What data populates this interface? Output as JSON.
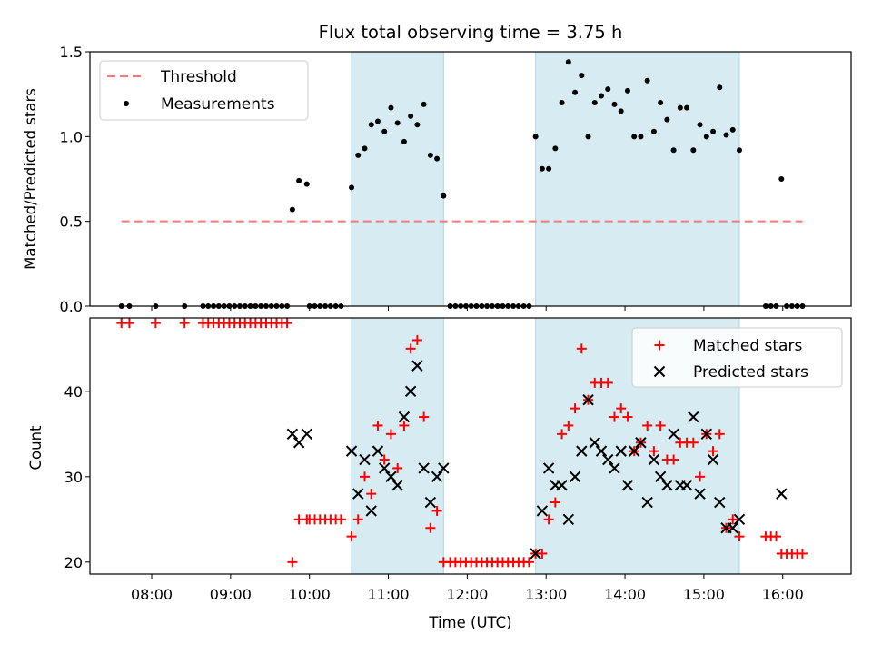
{
  "chart_data": [
    {
      "type": "scatter",
      "title": "Flux total observing time = 3.75 h",
      "xlabel": "",
      "ylabel": "Matched/Predicted stars",
      "ylim": [
        0,
        1.5
      ],
      "yticks": [
        "0.0",
        "0.5",
        "1.0",
        "1.5"
      ],
      "legend_position": "top-left",
      "threshold": {
        "name": "Threshold",
        "value": 0.5,
        "x_start": "07:37",
        "x_end": "16:15",
        "color": "#ff7777"
      },
      "shaded_spans": [
        [
          "10:32",
          "11:42"
        ],
        [
          "12:52",
          "15:27"
        ]
      ],
      "shade_color": "#add8e6",
      "series": [
        {
          "name": "Measurements",
          "color": "#000000",
          "points": [
            [
              "07:37",
              0
            ],
            [
              "07:43",
              0
            ],
            [
              "08:03",
              0
            ],
            [
              "08:25",
              0
            ],
            [
              "08:39",
              0
            ],
            [
              "08:43",
              0
            ],
            [
              "08:47",
              0
            ],
            [
              "08:51",
              0
            ],
            [
              "08:55",
              0
            ],
            [
              "08:59",
              0
            ],
            [
              "09:03",
              0
            ],
            [
              "09:07",
              0
            ],
            [
              "09:11",
              0
            ],
            [
              "09:15",
              0
            ],
            [
              "09:19",
              0
            ],
            [
              "09:23",
              0
            ],
            [
              "09:27",
              0
            ],
            [
              "09:31",
              0
            ],
            [
              "09:35",
              0
            ],
            [
              "09:39",
              0
            ],
            [
              "09:43",
              0
            ],
            [
              "09:47",
              0.57
            ],
            [
              "09:52",
              0.74
            ],
            [
              "09:58",
              0.72
            ],
            [
              "10:00",
              0
            ],
            [
              "10:04",
              0
            ],
            [
              "10:08",
              0
            ],
            [
              "10:12",
              0
            ],
            [
              "10:16",
              0
            ],
            [
              "10:20",
              0
            ],
            [
              "10:24",
              0
            ],
            [
              "10:32",
              0.7
            ],
            [
              "10:37",
              0.89
            ],
            [
              "10:42",
              0.93
            ],
            [
              "10:47",
              1.07
            ],
            [
              "10:52",
              1.09
            ],
            [
              "10:57",
              1.03
            ],
            [
              "11:02",
              1.17
            ],
            [
              "11:07",
              1.08
            ],
            [
              "11:12",
              0.97
            ],
            [
              "11:17",
              1.12
            ],
            [
              "11:22",
              1.07
            ],
            [
              "11:27",
              1.19
            ],
            [
              "11:32",
              0.89
            ],
            [
              "11:37",
              0.87
            ],
            [
              "11:42",
              0.65
            ],
            [
              "11:47",
              0
            ],
            [
              "11:51",
              0
            ],
            [
              "11:55",
              0
            ],
            [
              "11:59",
              0
            ],
            [
              "12:03",
              0
            ],
            [
              "12:07",
              0
            ],
            [
              "12:11",
              0
            ],
            [
              "12:15",
              0
            ],
            [
              "12:19",
              0
            ],
            [
              "12:23",
              0
            ],
            [
              "12:27",
              0
            ],
            [
              "12:31",
              0
            ],
            [
              "12:35",
              0
            ],
            [
              "12:39",
              0
            ],
            [
              "12:43",
              0
            ],
            [
              "12:47",
              0
            ],
            [
              "12:52",
              1.0
            ],
            [
              "12:57",
              0.81
            ],
            [
              "13:02",
              0.81
            ],
            [
              "13:07",
              0.93
            ],
            [
              "13:12",
              1.2
            ],
            [
              "13:17",
              1.44
            ],
            [
              "13:22",
              1.26
            ],
            [
              "13:27",
              1.36
            ],
            [
              "13:32",
              1.0
            ],
            [
              "13:37",
              1.2
            ],
            [
              "13:42",
              1.24
            ],
            [
              "13:47",
              1.28
            ],
            [
              "13:52",
              1.19
            ],
            [
              "13:57",
              1.15
            ],
            [
              "14:02",
              1.27
            ],
            [
              "14:07",
              1.0
            ],
            [
              "14:12",
              1.0
            ],
            [
              "14:17",
              1.33
            ],
            [
              "14:22",
              1.03
            ],
            [
              "14:27",
              1.2
            ],
            [
              "14:32",
              1.1
            ],
            [
              "14:37",
              0.92
            ],
            [
              "14:42",
              1.17
            ],
            [
              "14:47",
              1.17
            ],
            [
              "14:52",
              0.92
            ],
            [
              "14:57",
              1.07
            ],
            [
              "15:02",
              1.0
            ],
            [
              "15:07",
              1.03
            ],
            [
              "15:12",
              1.29
            ],
            [
              "15:17",
              1.01
            ],
            [
              "15:22",
              1.04
            ],
            [
              "15:27",
              0.92
            ],
            [
              "15:47",
              0
            ],
            [
              "15:51",
              0
            ],
            [
              "15:55",
              0
            ],
            [
              "15:59",
              0.75
            ],
            [
              "16:03",
              0
            ],
            [
              "16:07",
              0
            ],
            [
              "16:11",
              0
            ],
            [
              "16:15",
              0
            ]
          ]
        }
      ]
    },
    {
      "type": "scatter",
      "title": "",
      "xlabel": "Time (UTC)",
      "ylabel": "Count",
      "ylim": [
        18.6,
        48.6
      ],
      "yticks": [
        "20",
        "30",
        "40"
      ],
      "xticks": [
        "08:00",
        "09:00",
        "10:00",
        "11:00",
        "12:00",
        "13:00",
        "14:00",
        "15:00",
        "16:00"
      ],
      "xlim": [
        "07:13",
        "16:52"
      ],
      "legend_position": "top-right",
      "shaded_spans": [
        [
          "10:32",
          "11:42"
        ],
        [
          "12:52",
          "15:27"
        ]
      ],
      "shade_color": "#add8e6",
      "series": [
        {
          "name": "Matched stars",
          "marker": "+",
          "color": "#ff0000",
          "points": [
            [
              "07:37",
              48
            ],
            [
              "07:43",
              48
            ],
            [
              "08:03",
              48
            ],
            [
              "08:25",
              48
            ],
            [
              "08:39",
              48
            ],
            [
              "08:43",
              48
            ],
            [
              "08:47",
              48
            ],
            [
              "08:51",
              48
            ],
            [
              "08:55",
              48
            ],
            [
              "08:59",
              48
            ],
            [
              "09:03",
              48
            ],
            [
              "09:07",
              48
            ],
            [
              "09:11",
              48
            ],
            [
              "09:15",
              48
            ],
            [
              "09:19",
              48
            ],
            [
              "09:23",
              48
            ],
            [
              "09:27",
              48
            ],
            [
              "09:31",
              48
            ],
            [
              "09:35",
              48
            ],
            [
              "09:39",
              48
            ],
            [
              "09:43",
              48
            ],
            [
              "09:47",
              20
            ],
            [
              "09:52",
              25
            ],
            [
              "09:58",
              25
            ],
            [
              "10:00",
              25
            ],
            [
              "10:04",
              25
            ],
            [
              "10:08",
              25
            ],
            [
              "10:12",
              25
            ],
            [
              "10:16",
              25
            ],
            [
              "10:20",
              25
            ],
            [
              "10:24",
              25
            ],
            [
              "10:32",
              23
            ],
            [
              "10:37",
              25
            ],
            [
              "10:42",
              30
            ],
            [
              "10:47",
              28
            ],
            [
              "10:52",
              36
            ],
            [
              "10:57",
              32
            ],
            [
              "11:02",
              35
            ],
            [
              "11:07",
              31
            ],
            [
              "11:12",
              36
            ],
            [
              "11:17",
              45
            ],
            [
              "11:22",
              46
            ],
            [
              "11:27",
              37
            ],
            [
              "11:32",
              24
            ],
            [
              "11:37",
              26
            ],
            [
              "11:42",
              20
            ],
            [
              "11:47",
              20
            ],
            [
              "11:51",
              20
            ],
            [
              "11:55",
              20
            ],
            [
              "11:59",
              20
            ],
            [
              "12:03",
              20
            ],
            [
              "12:07",
              20
            ],
            [
              "12:11",
              20
            ],
            [
              "12:15",
              20
            ],
            [
              "12:19",
              20
            ],
            [
              "12:23",
              20
            ],
            [
              "12:27",
              20
            ],
            [
              "12:31",
              20
            ],
            [
              "12:35",
              20
            ],
            [
              "12:39",
              20
            ],
            [
              "12:43",
              20
            ],
            [
              "12:47",
              20
            ],
            [
              "12:52",
              21
            ],
            [
              "12:57",
              21
            ],
            [
              "13:02",
              25
            ],
            [
              "13:07",
              27
            ],
            [
              "13:12",
              35
            ],
            [
              "13:17",
              36
            ],
            [
              "13:22",
              38
            ],
            [
              "13:27",
              45
            ],
            [
              "13:32",
              39
            ],
            [
              "13:37",
              41
            ],
            [
              "13:42",
              41
            ],
            [
              "13:47",
              41
            ],
            [
              "13:52",
              37
            ],
            [
              "13:57",
              38
            ],
            [
              "14:02",
              37
            ],
            [
              "14:07",
              33
            ],
            [
              "14:12",
              34
            ],
            [
              "14:17",
              36
            ],
            [
              "14:22",
              33
            ],
            [
              "14:27",
              36
            ],
            [
              "14:32",
              32
            ],
            [
              "14:37",
              32
            ],
            [
              "14:42",
              34
            ],
            [
              "14:47",
              34
            ],
            [
              "14:52",
              34
            ],
            [
              "14:57",
              30
            ],
            [
              "15:02",
              35
            ],
            [
              "15:07",
              33
            ],
            [
              "15:12",
              35
            ],
            [
              "15:17",
              24
            ],
            [
              "15:22",
              25
            ],
            [
              "15:27",
              23
            ],
            [
              "15:47",
              23
            ],
            [
              "15:51",
              23
            ],
            [
              "15:55",
              23
            ],
            [
              "15:59",
              21
            ],
            [
              "16:03",
              21
            ],
            [
              "16:07",
              21
            ],
            [
              "16:11",
              21
            ],
            [
              "16:15",
              21
            ]
          ]
        },
        {
          "name": "Predicted stars",
          "marker": "x",
          "color": "#000000",
          "points": [
            [
              "09:47",
              35
            ],
            [
              "09:52",
              34
            ],
            [
              "09:58",
              35
            ],
            [
              "10:32",
              33
            ],
            [
              "10:37",
              28
            ],
            [
              "10:42",
              32
            ],
            [
              "10:47",
              26
            ],
            [
              "10:52",
              33
            ],
            [
              "10:57",
              31
            ],
            [
              "11:02",
              30
            ],
            [
              "11:07",
              29
            ],
            [
              "11:12",
              37
            ],
            [
              "11:17",
              40
            ],
            [
              "11:22",
              43
            ],
            [
              "11:27",
              31
            ],
            [
              "11:32",
              27
            ],
            [
              "11:37",
              30
            ],
            [
              "11:42",
              31
            ],
            [
              "12:52",
              21
            ],
            [
              "12:57",
              26
            ],
            [
              "13:02",
              31
            ],
            [
              "13:07",
              29
            ],
            [
              "13:12",
              29
            ],
            [
              "13:17",
              25
            ],
            [
              "13:22",
              30
            ],
            [
              "13:27",
              33
            ],
            [
              "13:32",
              39
            ],
            [
              "13:37",
              34
            ],
            [
              "13:42",
              33
            ],
            [
              "13:47",
              32
            ],
            [
              "13:52",
              31
            ],
            [
              "13:57",
              33
            ],
            [
              "14:02",
              29
            ],
            [
              "14:07",
              33
            ],
            [
              "14:12",
              34
            ],
            [
              "14:17",
              27
            ],
            [
              "14:22",
              32
            ],
            [
              "14:27",
              30
            ],
            [
              "14:32",
              29
            ],
            [
              "14:37",
              35
            ],
            [
              "14:42",
              29
            ],
            [
              "14:47",
              29
            ],
            [
              "14:52",
              37
            ],
            [
              "14:57",
              28
            ],
            [
              "15:02",
              35
            ],
            [
              "15:07",
              32
            ],
            [
              "15:12",
              27
            ],
            [
              "15:17",
              24
            ],
            [
              "15:22",
              24
            ],
            [
              "15:27",
              25
            ],
            [
              "15:59",
              28
            ]
          ]
        }
      ]
    }
  ]
}
